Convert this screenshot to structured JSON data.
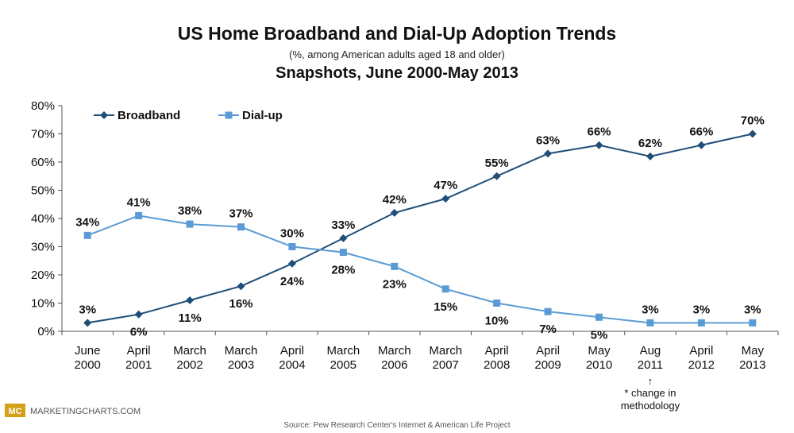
{
  "chart_data": {
    "type": "line",
    "title": "US Home Broadband and Dial-Up Adoption Trends",
    "subtitle": "(%, among American adults aged 18 and older)",
    "subtitle2": "Snapshots, June 2000-May 2013",
    "categories": [
      [
        "June",
        "2000"
      ],
      [
        "April",
        "2001"
      ],
      [
        "March",
        "2002"
      ],
      [
        "March",
        "2003"
      ],
      [
        "April",
        "2004"
      ],
      [
        "March",
        "2005"
      ],
      [
        "March",
        "2006"
      ],
      [
        "March",
        "2007"
      ],
      [
        "April",
        "2008"
      ],
      [
        "April",
        "2009"
      ],
      [
        "May",
        "2010"
      ],
      [
        "Aug",
        "2011"
      ],
      [
        "April",
        "2012"
      ],
      [
        "May",
        "2013"
      ]
    ],
    "ylim": [
      0,
      80
    ],
    "yticks": [
      "0%",
      "10%",
      "20%",
      "30%",
      "40%",
      "50%",
      "60%",
      "70%",
      "80%"
    ],
    "legend_position": "top-left",
    "series": [
      {
        "name": "Broadband",
        "color": "#1f4e79",
        "marker": "diamond",
        "values": [
          3,
          6,
          11,
          16,
          24,
          33,
          42,
          47,
          55,
          63,
          66,
          62,
          66,
          70
        ],
        "labels": [
          "3%",
          "6%",
          "11%",
          "16%",
          "24%",
          "33%",
          "42%",
          "47%",
          "55%",
          "63%",
          "66%",
          "62%",
          "66%",
          "70%"
        ]
      },
      {
        "name": "Dial-up",
        "color": "#5b9bd5",
        "marker": "square",
        "values": [
          34,
          41,
          38,
          37,
          30,
          28,
          23,
          15,
          10,
          7,
          5,
          3,
          3,
          3
        ],
        "labels": [
          "34%",
          "41%",
          "38%",
          "37%",
          "30%",
          "28%",
          "23%",
          "15%",
          "10%",
          "7%",
          "5%",
          "3%",
          "3%",
          "3%"
        ]
      }
    ],
    "annotation": {
      "arrow": "↑",
      "lines": [
        "* change in",
        "methodology"
      ]
    }
  },
  "footer": {
    "logo": "MC",
    "brand": "MARKETINGCHARTS.COM",
    "source": "Source: Pew Research Center's Internet & American Life Project"
  }
}
